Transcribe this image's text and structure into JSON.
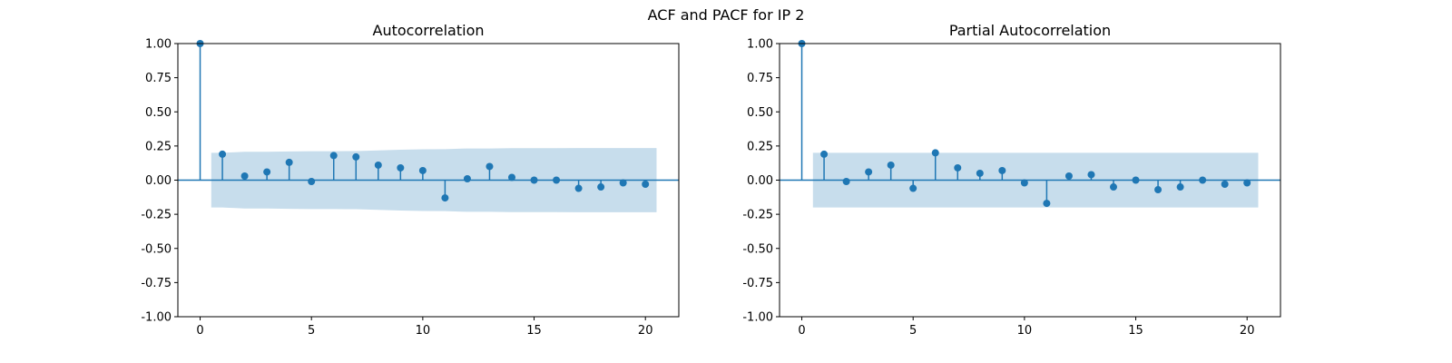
{
  "suptitle": "ACF and PACF for IP 2",
  "colors": {
    "stem": "#1f77b4",
    "band": "#1f77b4",
    "axes": "#000000",
    "background": "#ffffff"
  },
  "chart_data": [
    {
      "type": "stem",
      "title": "Autocorrelation",
      "xlabel": "",
      "ylabel": "",
      "xlim": [
        -1,
        21.5
      ],
      "ylim": [
        -1.0,
        1.0
      ],
      "xticks": [
        0,
        5,
        10,
        15,
        20
      ],
      "yticks": [
        -1.0,
        -0.75,
        -0.5,
        -0.25,
        0.0,
        0.25,
        0.5,
        0.75,
        1.0
      ],
      "lags": [
        0,
        1,
        2,
        3,
        4,
        5,
        6,
        7,
        8,
        9,
        10,
        11,
        12,
        13,
        14,
        15,
        16,
        17,
        18,
        19,
        20
      ],
      "values": [
        1.0,
        0.19,
        0.03,
        0.06,
        0.13,
        -0.01,
        0.18,
        0.17,
        0.11,
        0.09,
        0.07,
        -0.13,
        0.01,
        0.1,
        0.02,
        0.0,
        0.0,
        -0.06,
        -0.05,
        -0.02,
        -0.03
      ],
      "confidence_band": {
        "x": [
          0.5,
          1,
          2,
          3,
          4,
          5,
          6,
          7,
          8,
          9,
          10,
          11,
          12,
          13,
          14,
          15,
          16,
          17,
          18,
          19,
          20,
          20.5
        ],
        "upper": [
          0.2,
          0.2,
          0.208,
          0.208,
          0.21,
          0.212,
          0.212,
          0.213,
          0.218,
          0.223,
          0.226,
          0.227,
          0.232,
          0.232,
          0.234,
          0.234,
          0.234,
          0.235,
          0.235,
          0.235,
          0.235,
          0.235
        ]
      }
    },
    {
      "type": "stem",
      "title": "Partial Autocorrelation",
      "xlabel": "",
      "ylabel": "",
      "xlim": [
        -1,
        21.5
      ],
      "ylim": [
        -1.0,
        1.0
      ],
      "xticks": [
        0,
        5,
        10,
        15,
        20
      ],
      "yticks": [
        -1.0,
        -0.75,
        -0.5,
        -0.25,
        0.0,
        0.25,
        0.5,
        0.75,
        1.0
      ],
      "lags": [
        0,
        1,
        2,
        3,
        4,
        5,
        6,
        7,
        8,
        9,
        10,
        11,
        12,
        13,
        14,
        15,
        16,
        17,
        18,
        19,
        20
      ],
      "values": [
        1.0,
        0.19,
        -0.01,
        0.06,
        0.11,
        -0.06,
        0.2,
        0.09,
        0.05,
        0.07,
        -0.02,
        -0.17,
        0.03,
        0.04,
        -0.05,
        0.0,
        -0.07,
        -0.05,
        0.0,
        -0.03,
        -0.02
      ],
      "confidence_band": {
        "x": [
          0.5,
          20.5
        ],
        "upper": [
          0.2,
          0.2
        ]
      }
    }
  ]
}
